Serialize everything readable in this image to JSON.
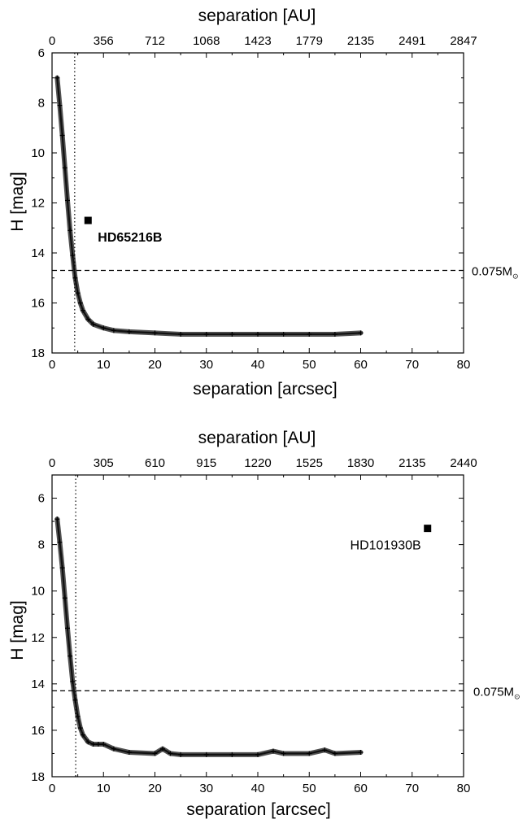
{
  "chart_data": [
    {
      "type": "scatter",
      "xlabel": "separation [arcsec]",
      "ylabel": "H [mag]",
      "x2label": "separation [AU]",
      "xlim": [
        0,
        80
      ],
      "ylim": [
        18,
        6
      ],
      "y_inverted": true,
      "x_ticks": [
        "0",
        "10",
        "20",
        "30",
        "40",
        "50",
        "60",
        "70",
        "80"
      ],
      "y_ticks": [
        "6",
        "8",
        "10",
        "12",
        "14",
        "16",
        "18"
      ],
      "x2_ticks": [
        "0",
        "356",
        "712",
        "1068",
        "1423",
        "1779",
        "2135",
        "2491",
        "2847"
      ],
      "curve": {
        "x": [
          1,
          1.5,
          2,
          2.5,
          3,
          3.5,
          4,
          4.5,
          5,
          5.5,
          6,
          7,
          8,
          10,
          12,
          15,
          20,
          25,
          30,
          35,
          40,
          45,
          50,
          55,
          60
        ],
        "y": [
          7.0,
          8.1,
          9.3,
          10.6,
          11.9,
          13.1,
          14.1,
          15.0,
          15.6,
          16.0,
          16.3,
          16.65,
          16.85,
          17.0,
          17.1,
          17.15,
          17.2,
          17.25,
          17.25,
          17.25,
          17.25,
          17.25,
          17.25,
          17.25,
          17.2
        ]
      },
      "companion": {
        "name": "HD65216B",
        "x": 7,
        "y": 12.7
      },
      "mass_limit": {
        "label": "0.075M",
        "symbol": "⊙",
        "y": 14.7
      },
      "vline_x": 4.4,
      "grid": false
    },
    {
      "type": "scatter",
      "xlabel": "separation [arcsec]",
      "ylabel": "H [mag]",
      "x2label": "separation [AU]",
      "xlim": [
        0,
        80
      ],
      "ylim": [
        18,
        5
      ],
      "y_inverted": true,
      "x_ticks": [
        "0",
        "10",
        "20",
        "30",
        "40",
        "50",
        "60",
        "70",
        "80"
      ],
      "y_ticks": [
        "6",
        "8",
        "10",
        "12",
        "14",
        "16",
        "18"
      ],
      "x2_ticks": [
        "0",
        "305",
        "610",
        "915",
        "1220",
        "1525",
        "1830",
        "2135",
        "2440"
      ],
      "curve": {
        "x": [
          1,
          1.5,
          2,
          2.5,
          3,
          3.5,
          4,
          4.5,
          5,
          5.5,
          6,
          7,
          8,
          9,
          10,
          12,
          15,
          20,
          21.5,
          23,
          25,
          30,
          35,
          40,
          43,
          45,
          50,
          53,
          55,
          60
        ],
        "y": [
          6.9,
          7.9,
          9.0,
          10.3,
          11.6,
          12.8,
          13.9,
          14.7,
          15.4,
          15.9,
          16.2,
          16.5,
          16.6,
          16.6,
          16.6,
          16.8,
          16.95,
          17.0,
          16.8,
          17.0,
          17.05,
          17.05,
          17.05,
          17.05,
          16.9,
          17.0,
          17.0,
          16.85,
          17.0,
          16.95
        ]
      },
      "companion": {
        "name": "HD101930B",
        "x": 73,
        "y": 7.3
      },
      "mass_limit": {
        "label": "0.075M",
        "symbol": "⊙",
        "y": 14.3
      },
      "vline_x": 4.6,
      "grid": false
    }
  ]
}
